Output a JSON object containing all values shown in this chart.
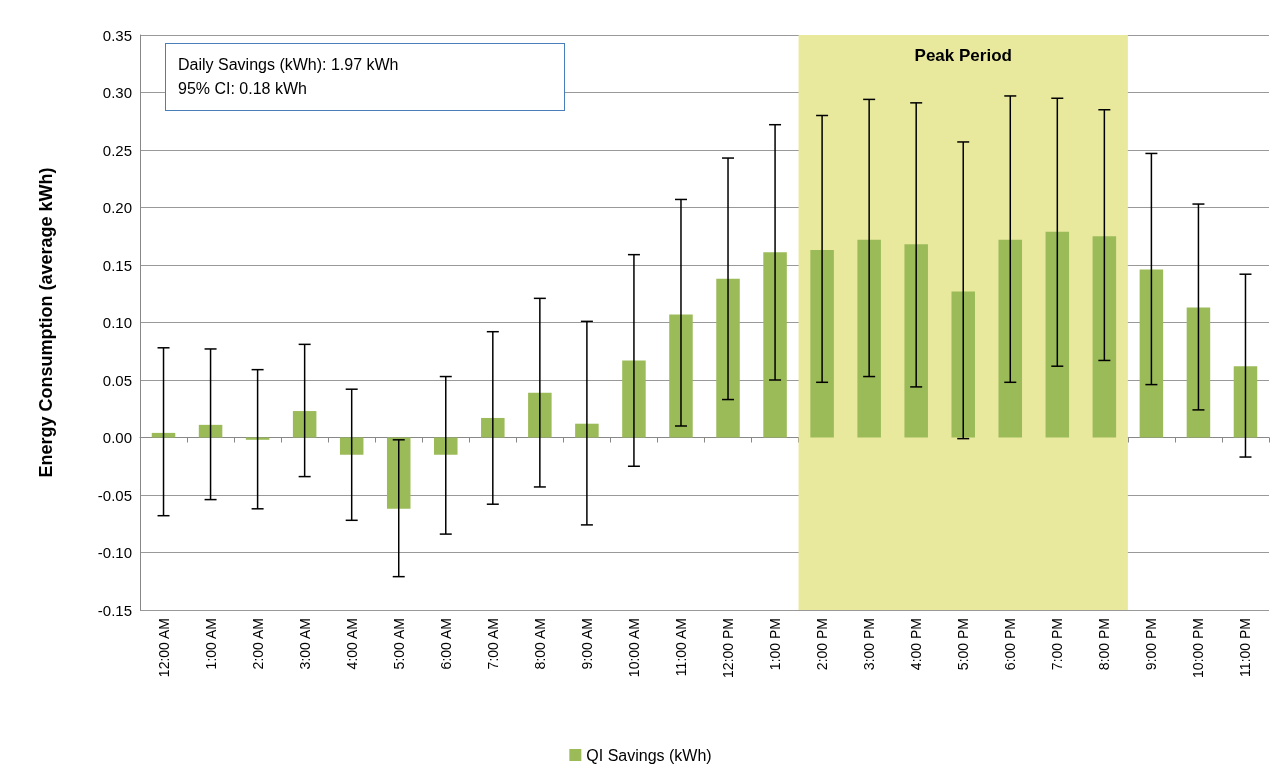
{
  "chart_data": {
    "type": "bar",
    "ylabel": "Energy Consumption (average kWh)",
    "categories": [
      "12:00 AM",
      "1:00 AM",
      "2:00 AM",
      "3:00 AM",
      "4:00 AM",
      "5:00 AM",
      "6:00 AM",
      "7:00 AM",
      "8:00 AM",
      "9:00 AM",
      "10:00 AM",
      "11:00 AM",
      "12:00 PM",
      "1:00 PM",
      "2:00 PM",
      "3:00 PM",
      "4:00 PM",
      "5:00 PM",
      "6:00 PM",
      "7:00 PM",
      "8:00 PM",
      "9:00 PM",
      "10:00 PM",
      "11:00 PM"
    ],
    "series": [
      {
        "name": "QI Savings (kWh)",
        "color": "#9bbb59",
        "values": [
          0.004,
          0.011,
          -0.002,
          0.023,
          -0.015,
          -0.062,
          -0.015,
          0.017,
          0.039,
          0.012,
          0.067,
          0.107,
          0.138,
          0.161,
          0.163,
          0.172,
          0.168,
          0.127,
          0.172,
          0.179,
          0.175,
          0.146,
          0.113,
          0.062
        ],
        "errors": [
          [
            -0.068,
            0.078
          ],
          [
            -0.054,
            0.077
          ],
          [
            -0.062,
            0.059
          ],
          [
            -0.034,
            0.081
          ],
          [
            -0.072,
            0.042
          ],
          [
            -0.121,
            -0.002
          ],
          [
            -0.084,
            0.053
          ],
          [
            -0.058,
            0.092
          ],
          [
            -0.043,
            0.121
          ],
          [
            -0.076,
            0.101
          ],
          [
            -0.025,
            0.159
          ],
          [
            0.01,
            0.207
          ],
          [
            0.033,
            0.243
          ],
          [
            0.05,
            0.272
          ],
          [
            0.048,
            0.28
          ],
          [
            0.053,
            0.294
          ],
          [
            0.044,
            0.291
          ],
          [
            -0.001,
            0.257
          ],
          [
            0.048,
            0.297
          ],
          [
            0.062,
            0.295
          ],
          [
            0.067,
            0.285
          ],
          [
            0.046,
            0.247
          ],
          [
            0.024,
            0.203
          ],
          [
            -0.017,
            0.142
          ]
        ]
      }
    ],
    "ylim": [
      -0.15,
      0.35
    ],
    "yticks": [
      {
        "value": -0.15,
        "label": "-0.15"
      },
      {
        "value": -0.1,
        "label": "-0.10"
      },
      {
        "value": -0.05,
        "label": "-0.05"
      },
      {
        "value": 0,
        "label": "0.00"
      },
      {
        "value": 0.05,
        "label": "0.05"
      },
      {
        "value": 0.1,
        "label": "0.10"
      },
      {
        "value": 0.15,
        "label": "0.15"
      },
      {
        "value": 0.2,
        "label": "0.20"
      },
      {
        "value": 0.25,
        "label": "0.25"
      },
      {
        "value": 0.3,
        "label": "0.30"
      },
      {
        "value": 0.35,
        "label": "0.35"
      }
    ],
    "bands": [
      {
        "axis": "x",
        "from": "2:00 PM",
        "to": "8:00 PM",
        "label": "Peak Period",
        "color": "#e9e99e"
      }
    ],
    "annotations": [
      "Daily Savings (kWh): 1.97 kWh",
      "95% CI: 0.18 kWh"
    ],
    "grid": "y",
    "legend": "bottom"
  }
}
